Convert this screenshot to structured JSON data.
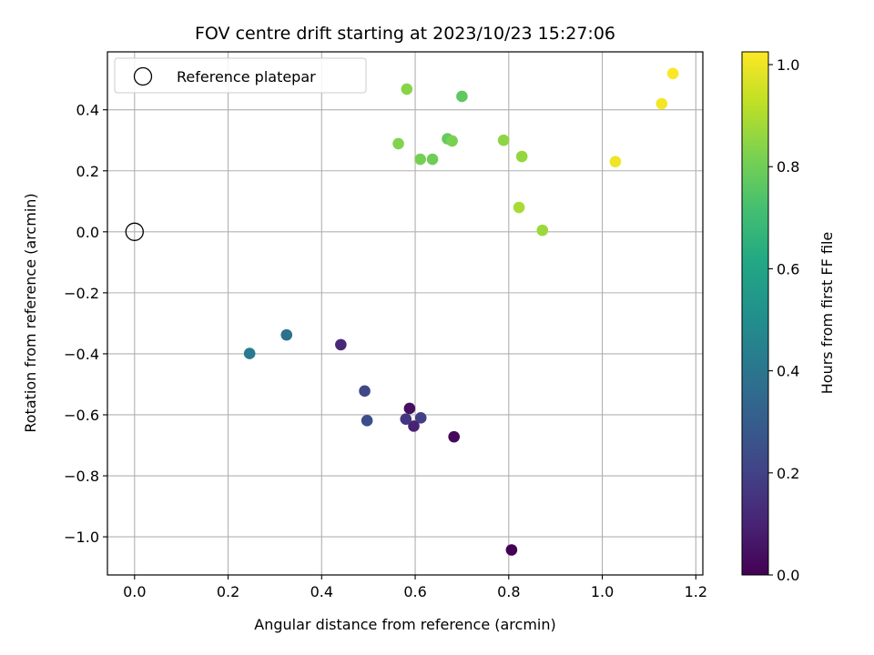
{
  "chart_data": {
    "type": "scatter",
    "title": "FOV centre drift starting at 2023/10/23 15:27:06",
    "xlabel": "Angular distance from reference (arcmin)",
    "ylabel": "Rotation from reference (arcmin)",
    "xlim": [
      -0.058,
      1.215
    ],
    "ylim": [
      -1.125,
      0.59
    ],
    "grid": true,
    "x_ticks": [
      0.0,
      0.2,
      0.4,
      0.6,
      0.8,
      1.0,
      1.2
    ],
    "x_tick_labels": [
      "0.0",
      "0.2",
      "0.4",
      "0.6",
      "0.8",
      "1.0",
      "1.2"
    ],
    "y_ticks": [
      -1.0,
      -0.8,
      -0.6,
      -0.4,
      -0.2,
      0.0,
      0.2,
      0.4
    ],
    "y_tick_labels": [
      "−1.0",
      "−0.8",
      "−0.6",
      "−0.4",
      "−0.2",
      "0.0",
      "0.2",
      "0.4"
    ],
    "legend": {
      "placement": "top-left",
      "entries": [
        {
          "label": "Reference platepar",
          "marker": "open-circle",
          "x": 0.0,
          "y": 0.0
        }
      ]
    },
    "colorbar": {
      "label": "Hours from first FF file",
      "colormap": "viridis",
      "range": [
        0.0,
        1.025
      ],
      "ticks": [
        0.0,
        0.2,
        0.4,
        0.6,
        0.8,
        1.0
      ],
      "tick_labels": [
        "0.0",
        "0.2",
        "0.4",
        "0.6",
        "0.8",
        "1.0"
      ]
    },
    "points": [
      {
        "x": 0.806,
        "y": -1.043,
        "hours": 0.0
      },
      {
        "x": 0.683,
        "y": -0.672,
        "hours": 0.02
      },
      {
        "x": 0.588,
        "y": -0.579,
        "hours": 0.04
      },
      {
        "x": 0.597,
        "y": -0.637,
        "hours": 0.1
      },
      {
        "x": 0.441,
        "y": -0.37,
        "hours": 0.12
      },
      {
        "x": 0.58,
        "y": -0.614,
        "hours": 0.16
      },
      {
        "x": 0.612,
        "y": -0.61,
        "hours": 0.19
      },
      {
        "x": 0.492,
        "y": -0.522,
        "hours": 0.22
      },
      {
        "x": 0.497,
        "y": -0.619,
        "hours": 0.24
      },
      {
        "x": 0.325,
        "y": -0.338,
        "hours": 0.38
      },
      {
        "x": 0.246,
        "y": -0.399,
        "hours": 0.42
      },
      {
        "x": 0.7,
        "y": 0.444,
        "hours": 0.77
      },
      {
        "x": 0.669,
        "y": 0.305,
        "hours": 0.78
      },
      {
        "x": 0.637,
        "y": 0.238,
        "hours": 0.8
      },
      {
        "x": 0.611,
        "y": 0.238,
        "hours": 0.81
      },
      {
        "x": 0.679,
        "y": 0.298,
        "hours": 0.82
      },
      {
        "x": 0.564,
        "y": 0.289,
        "hours": 0.83
      },
      {
        "x": 0.582,
        "y": 0.468,
        "hours": 0.84
      },
      {
        "x": 0.789,
        "y": 0.3,
        "hours": 0.85
      },
      {
        "x": 0.828,
        "y": 0.247,
        "hours": 0.86
      },
      {
        "x": 0.872,
        "y": 0.005,
        "hours": 0.87
      },
      {
        "x": 0.822,
        "y": 0.08,
        "hours": 0.89
      },
      {
        "x": 1.028,
        "y": 0.23,
        "hours": 1.0
      },
      {
        "x": 1.127,
        "y": 0.42,
        "hours": 1.01
      },
      {
        "x": 1.151,
        "y": 0.519,
        "hours": 1.02
      }
    ]
  }
}
